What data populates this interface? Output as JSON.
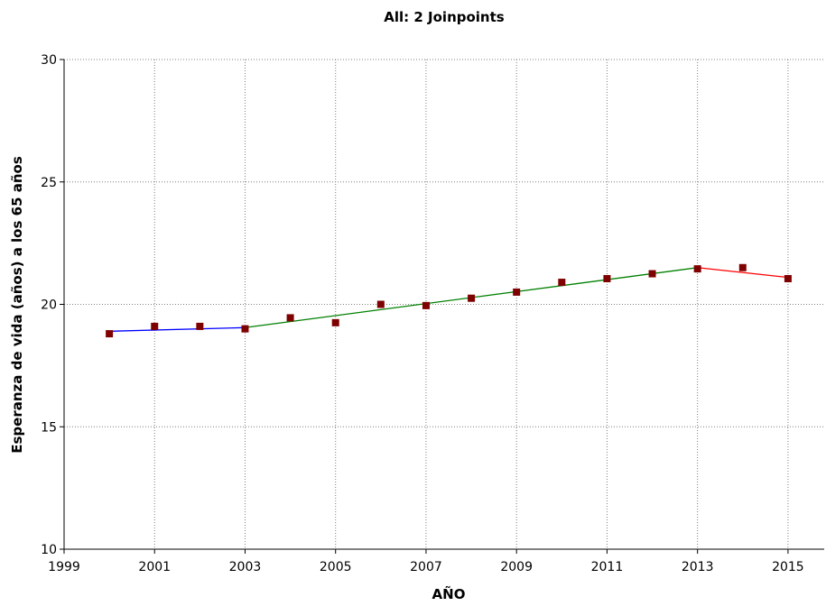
{
  "chart_data": {
    "type": "line",
    "title": "All: 2 Joinpoints",
    "xlabel": "AÑO",
    "ylabel": "Esperanza de vida (años) a los 65 años",
    "xlim": [
      1999,
      2015.8
    ],
    "ylim": [
      10,
      30
    ],
    "x_ticks": [
      "1999",
      "2001",
      "2003",
      "2005",
      "2007",
      "2009",
      "2011",
      "2013",
      "2015"
    ],
    "y_ticks": [
      "10",
      "15",
      "20",
      "25",
      "30"
    ],
    "grid": true,
    "observed": {
      "color": "#7f0000",
      "x": [
        2000,
        2001,
        2002,
        2003,
        2004,
        2005,
        2006,
        2007,
        2008,
        2009,
        2010,
        2011,
        2012,
        2013,
        2014,
        2015
      ],
      "y": [
        18.8,
        19.1,
        19.1,
        19.0,
        19.45,
        19.25,
        20.0,
        19.95,
        20.25,
        20.5,
        20.9,
        21.05,
        21.25,
        21.45,
        21.5,
        21.05
      ]
    },
    "segments": [
      {
        "color": "#0000ff",
        "x": [
          2000,
          2003
        ],
        "y": [
          18.9,
          19.05
        ]
      },
      {
        "color": "#008000",
        "x": [
          2003,
          2013
        ],
        "y": [
          19.05,
          21.5
        ]
      },
      {
        "color": "#ff0000",
        "x": [
          2013,
          2015
        ],
        "y": [
          21.5,
          21.1
        ]
      }
    ]
  }
}
